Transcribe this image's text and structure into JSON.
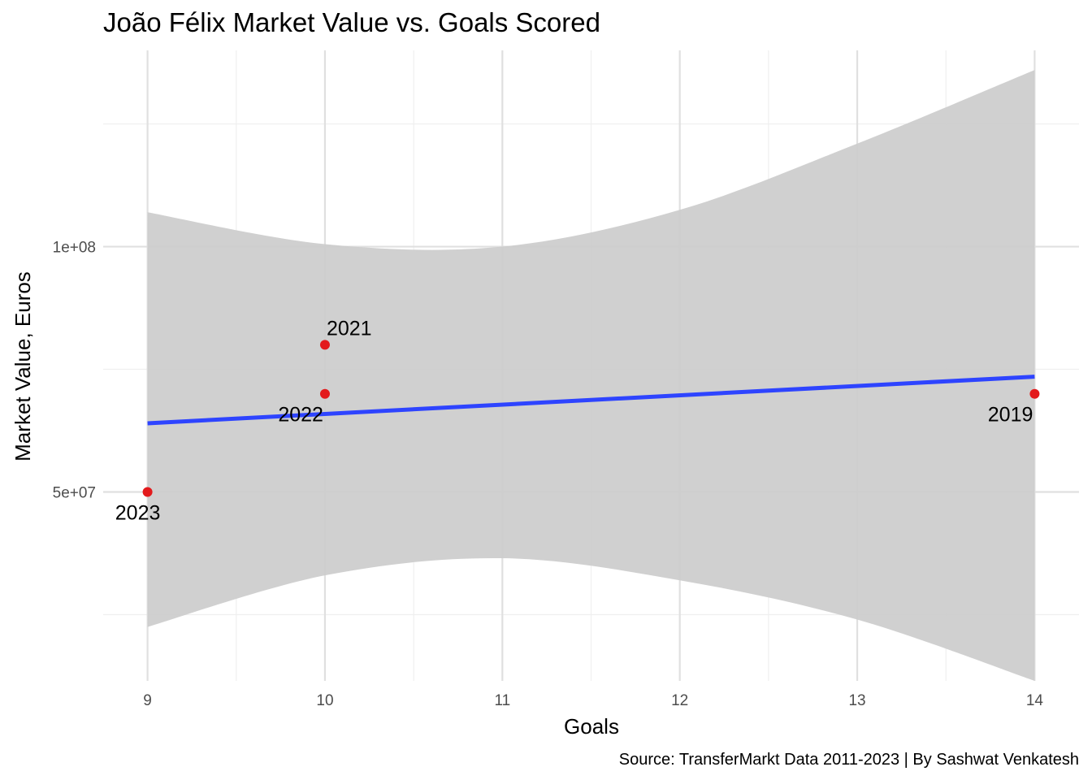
{
  "chart_data": {
    "type": "scatter",
    "title": "João Félix Market Value vs. Goals Scored",
    "xlabel": "Goals",
    "ylabel": "Market Value, Euros",
    "caption": "Source: TransferMarkt Data 2011-2023 | By Sashwat Venkatesh",
    "xlim": [
      8.75,
      14.25
    ],
    "ylim": [
      11500000,
      140000000
    ],
    "x_ticks": [
      9,
      10,
      11,
      12,
      13,
      14
    ],
    "x_tick_labels": [
      "9",
      "10",
      "11",
      "12",
      "13",
      "14"
    ],
    "y_ticks": [
      50000000,
      100000000
    ],
    "y_tick_labels": [
      "5e+07",
      "1e+08"
    ],
    "grid": true,
    "points": [
      {
        "label": "2023",
        "x": 9,
        "y": 50000000
      },
      {
        "label": "2021",
        "x": 10,
        "y": 80000000
      },
      {
        "label": "2022",
        "x": 10,
        "y": 70000000
      },
      {
        "label": "2019",
        "x": 14,
        "y": 70000000
      }
    ],
    "fit_line": {
      "x": [
        9,
        14
      ],
      "y": [
        64000000,
        73500000
      ]
    },
    "confidence_band": {
      "x": [
        9,
        10,
        11,
        12,
        13,
        14
      ],
      "upper": [
        107000000,
        100500000,
        100000000,
        107500000,
        121000000,
        136000000
      ],
      "lower": [
        22500000,
        33000000,
        36500000,
        32000000,
        24000000,
        11500000
      ]
    },
    "colors": {
      "point": "#e31a1c",
      "fit_line": "#2e44ff",
      "band": "#cccccc",
      "grid_major": "#e0e0e0",
      "grid_minor": "#efefef"
    }
  }
}
